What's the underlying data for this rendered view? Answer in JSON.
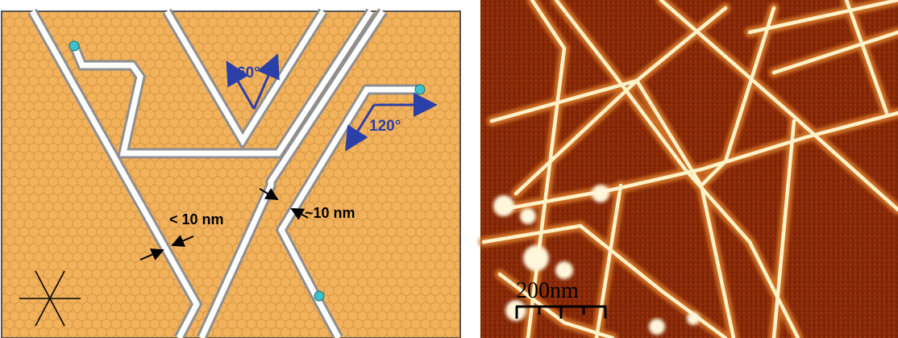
{
  "schematic": {
    "angle_small": "60°",
    "angle_large": "120°",
    "gap_label": "< 10 nm",
    "width_label": "~10 nm",
    "colors": {
      "lattice_fill": "#f2b25c",
      "lattice_line": "#cf8d3c",
      "trench_outer": "#8f8f8f",
      "trench_inner": "#ffffff",
      "particle": "#3fc1c9",
      "angle_arrow": "#2a3fa8",
      "dimension_arrow": "#000000"
    }
  },
  "afm": {
    "scale_bar_label": "200nm",
    "colors": {
      "background": "#8a2a08",
      "ribbon": "#fff1c8"
    }
  }
}
